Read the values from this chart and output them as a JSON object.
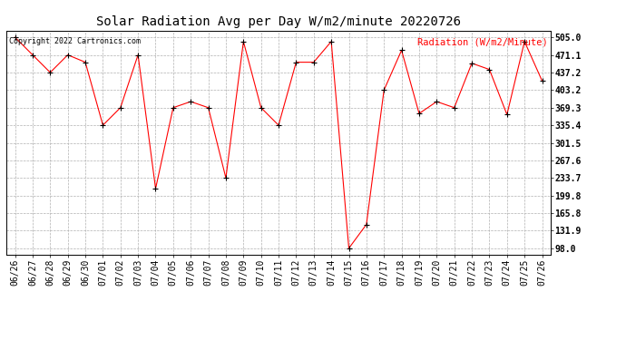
{
  "title": "Solar Radiation Avg per Day W/m2/minute 20220726",
  "legend_label": "Radiation (W/m2/Minute)",
  "copyright_text": "Copyright 2022 Cartronics.com",
  "dates": [
    "06/26",
    "06/27",
    "06/28",
    "06/29",
    "06/30",
    "07/01",
    "07/02",
    "07/03",
    "07/04",
    "07/05",
    "07/06",
    "07/07",
    "07/08",
    "07/09",
    "07/10",
    "07/11",
    "07/12",
    "07/13",
    "07/14",
    "07/15",
    "07/16",
    "07/17",
    "07/18",
    "07/19",
    "07/20",
    "07/21",
    "07/22",
    "07/23",
    "07/24",
    "07/25",
    "07/26"
  ],
  "values": [
    505.0,
    471.1,
    437.2,
    471.1,
    457.0,
    335.4,
    369.3,
    471.1,
    213.0,
    369.3,
    381.0,
    369.3,
    233.7,
    497.0,
    369.3,
    335.4,
    457.0,
    457.0,
    497.0,
    98.0,
    144.0,
    403.2,
    480.0,
    358.0,
    381.0,
    369.3,
    455.0,
    443.0,
    356.0,
    497.0,
    421.0
  ],
  "yticks": [
    98.0,
    131.9,
    165.8,
    199.8,
    233.7,
    267.6,
    301.5,
    335.4,
    369.3,
    403.2,
    437.2,
    471.1,
    505.0
  ],
  "ylim": [
    85.0,
    518.0
  ],
  "line_color": "red",
  "marker_color": "black",
  "marker": "+",
  "background_color": "white",
  "grid_color": "#b0b0b0",
  "title_fontsize": 10,
  "tick_fontsize": 7,
  "legend_fontsize": 7.5,
  "copyright_fontsize": 6,
  "legend_color": "red",
  "copyright_color": "black",
  "fig_width": 6.9,
  "fig_height": 3.75,
  "dpi": 100
}
